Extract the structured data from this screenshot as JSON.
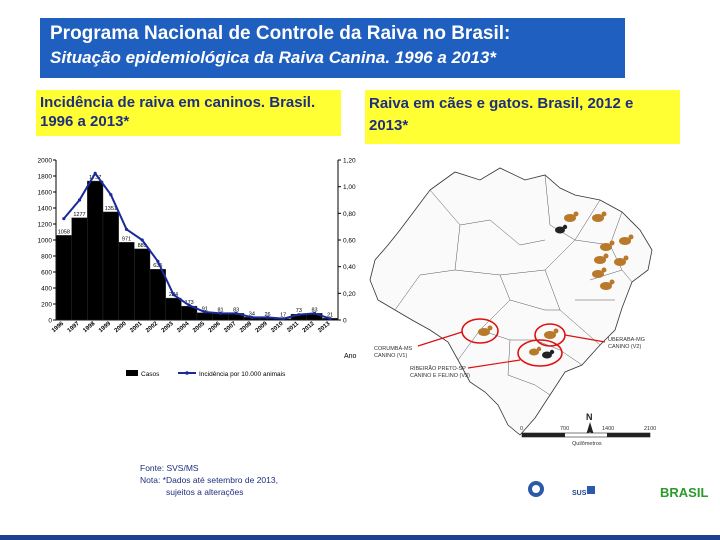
{
  "header": {
    "title": "Programa Nacional de Controle da Raiva no Brasil:",
    "subtitle": "Situação epidemiológica da Raiva Canina. 1996 a 2013*"
  },
  "left_panel": {
    "title": "Incidência de raiva em caninos. Brasil. 1996 a 2013*"
  },
  "right_panel": {
    "title": "Raiva em cães e gatos. Brasil, 2012 e 2013*"
  },
  "chart_data": {
    "type": "bar",
    "title": "",
    "xlabel": "Ano",
    "ylabel": "",
    "categories": [
      "1996",
      "1997",
      "1998",
      "1999",
      "2000",
      "2001",
      "2002",
      "2003",
      "2004",
      "2005",
      "2006",
      "2007",
      "2008",
      "2009",
      "2010",
      "2011",
      "2012",
      "2013"
    ],
    "series": [
      {
        "name": "Casos",
        "values": [
          1058,
          1277,
          1737,
          1351,
          971,
          889,
          635,
          274,
          173,
          91,
          81,
          83,
          34,
          26,
          17,
          73,
          83,
          21
        ],
        "color": "#000000"
      },
      {
        "name": "Incidência por 10.000 animais",
        "values": [
          0.76,
          0.9,
          1.1,
          0.94,
          0.68,
          0.6,
          0.44,
          0.19,
          0.11,
          0.06,
          0.05,
          0.05,
          0.02,
          0.02,
          0.01,
          0.04,
          0.05,
          0.01
        ],
        "color": "#1a2a9a"
      }
    ],
    "data_labels": [
      "1058",
      "1277",
      "1737",
      "1351",
      "971",
      "889",
      "635",
      "274",
      "173",
      "91",
      "81",
      "83",
      "34",
      "26",
      "17",
      "73",
      "83",
      "21"
    ],
    "ylim": [
      0,
      2000
    ],
    "y_ticks": [
      "0",
      "200",
      "400",
      "600",
      "800",
      "1000",
      "1200",
      "1400",
      "1600",
      "1800",
      "2000"
    ],
    "ylim_right": [
      0,
      1.2
    ],
    "y2_ticks": [
      "0",
      "0,20",
      "0,40",
      "0,60",
      "0,80",
      "1,00",
      "1,20"
    ],
    "legend_position": "bottom",
    "grid": false
  },
  "map": {
    "labels": {
      "corumba": "CORUMBÁ-MS\nCANINO (V1)",
      "uberaba": "UBERABA-MG\nCANINO (V2)",
      "ribeirao": "RIBEIRÃO PRETO-SP\nCANINO E FELINO (V3)"
    },
    "scale": {
      "ticks": [
        "0",
        "700",
        "1400",
        "2100"
      ],
      "unit": "Quilômetros"
    },
    "north": "N"
  },
  "source": {
    "line1": "Fonte: SVS/MS",
    "line2": "Nota: *Dados até setembro de 2013,",
    "line3": "sujeitos a alterações"
  },
  "logos": {
    "sus": "SUS",
    "brasil": "BRASIL"
  },
  "colors": {
    "title_bg": "#1f5fbf",
    "panel_bg": "#ffff33",
    "panel_text": "#1f2f7f",
    "bars": "#000000",
    "line": "#1a2a9a",
    "highlight": "#dd1111"
  }
}
